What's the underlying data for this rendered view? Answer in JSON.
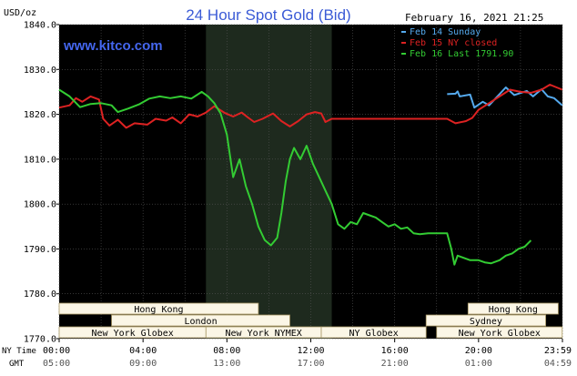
{
  "chart_data": {
    "type": "line",
    "title": "24 Hour Spot Gold (Bid)",
    "unit_label": "USD/oz",
    "watermark": "www.kitco.com",
    "timestamp": "February 16, 2021 21:25",
    "ylim": [
      1770,
      1840
    ],
    "y_ticks": [
      "1840.0",
      "1830.0",
      "1820.0",
      "1810.0",
      "1800.0",
      "1790.0",
      "1780.0",
      "1770.0"
    ],
    "xlim": [
      0,
      24
    ],
    "ny_label": "NY Time",
    "gmt_label": "GMT",
    "ny_ticks": [
      "00:00",
      "04:00",
      "08:00",
      "12:00",
      "16:00",
      "20:00",
      "23:59"
    ],
    "gmt_ticks": [
      "05:00",
      "09:00",
      "13:00",
      "17:00",
      "21:00",
      "01:00",
      "04:59"
    ],
    "grid": true,
    "legend_position": "top-right",
    "highlight_range": [
      7,
      13
    ],
    "sessions": [
      {
        "name": "Hong Kong",
        "start": 0,
        "end": 9.5,
        "row": 0
      },
      {
        "name": "London",
        "start": 2.5,
        "end": 11,
        "row": 1
      },
      {
        "name": "New York Globex",
        "start": 0,
        "end": 7,
        "row": 2
      },
      {
        "name": "New York NYMEX",
        "start": 7,
        "end": 12.5,
        "row": 2
      },
      {
        "name": "NY Globex",
        "start": 12.5,
        "end": 17.5,
        "row": 2
      },
      {
        "name": "Sydney",
        "start": 17.5,
        "end": 23.2,
        "row": 1
      },
      {
        "name": "Hong Kong",
        "start": 19.5,
        "end": 23.8,
        "row": 0
      },
      {
        "name": "New York Globex",
        "start": 18,
        "end": 23.99,
        "row": 2
      }
    ],
    "series": [
      {
        "name": "Feb 14 Sunday",
        "color": "#55aaee",
        "points": [
          [
            18.5,
            1824.5
          ],
          [
            18.9,
            1824.6
          ],
          [
            19.0,
            1825.1
          ],
          [
            19.1,
            1824.0
          ],
          [
            19.6,
            1824.4
          ],
          [
            19.8,
            1821.5
          ],
          [
            20.2,
            1822.8
          ],
          [
            20.5,
            1822.0
          ],
          [
            20.8,
            1823.5
          ],
          [
            21.3,
            1826.0
          ],
          [
            21.7,
            1824.3
          ],
          [
            22.3,
            1825.2
          ],
          [
            22.6,
            1824.0
          ],
          [
            23.0,
            1825.6
          ],
          [
            23.3,
            1824.0
          ],
          [
            23.6,
            1823.6
          ],
          [
            23.99,
            1822.0
          ]
        ]
      },
      {
        "name": "Feb 15 NY closed",
        "color": "#dd2222",
        "points": [
          [
            0,
            1821.5
          ],
          [
            0.5,
            1822.0
          ],
          [
            0.8,
            1823.6
          ],
          [
            1.1,
            1822.8
          ],
          [
            1.5,
            1824.0
          ],
          [
            1.9,
            1823.3
          ],
          [
            2.1,
            1819.0
          ],
          [
            2.4,
            1817.5
          ],
          [
            2.8,
            1818.8
          ],
          [
            3.2,
            1817.0
          ],
          [
            3.6,
            1818.0
          ],
          [
            4.2,
            1817.7
          ],
          [
            4.6,
            1819.0
          ],
          [
            5.1,
            1818.6
          ],
          [
            5.4,
            1819.3
          ],
          [
            5.8,
            1818.0
          ],
          [
            6.2,
            1820.0
          ],
          [
            6.6,
            1819.5
          ],
          [
            7.0,
            1820.4
          ],
          [
            7.4,
            1821.8
          ],
          [
            7.9,
            1820.3
          ],
          [
            8.3,
            1819.5
          ],
          [
            8.7,
            1820.4
          ],
          [
            9.0,
            1819.3
          ],
          [
            9.3,
            1818.3
          ],
          [
            9.7,
            1819.0
          ],
          [
            10.2,
            1820.2
          ],
          [
            10.6,
            1818.5
          ],
          [
            11.0,
            1817.3
          ],
          [
            11.4,
            1818.5
          ],
          [
            11.8,
            1820.0
          ],
          [
            12.2,
            1820.5
          ],
          [
            12.5,
            1820.2
          ],
          [
            12.7,
            1818.3
          ],
          [
            13.0,
            1819.0
          ],
          [
            13.5,
            1819.0
          ],
          [
            14.5,
            1819.0
          ],
          [
            15.5,
            1819.0
          ],
          [
            16.5,
            1819.0
          ],
          [
            17.5,
            1819.0
          ],
          [
            18.5,
            1819.0
          ],
          [
            18.9,
            1818.0
          ],
          [
            19.4,
            1818.5
          ],
          [
            19.7,
            1819.2
          ],
          [
            20.0,
            1821.0
          ],
          [
            20.5,
            1822.5
          ],
          [
            21.0,
            1824.0
          ],
          [
            21.5,
            1825.5
          ],
          [
            22.0,
            1825.0
          ],
          [
            22.5,
            1824.8
          ],
          [
            23.0,
            1825.5
          ],
          [
            23.4,
            1826.6
          ],
          [
            23.99,
            1825.5
          ]
        ]
      },
      {
        "name": "Feb 16 Last 1791.90",
        "color": "#33cc33",
        "points": [
          [
            0,
            1825.5
          ],
          [
            0.5,
            1824.0
          ],
          [
            1.0,
            1821.6
          ],
          [
            1.5,
            1822.3
          ],
          [
            2.0,
            1822.5
          ],
          [
            2.5,
            1822.0
          ],
          [
            2.8,
            1820.5
          ],
          [
            3.3,
            1821.3
          ],
          [
            3.8,
            1822.2
          ],
          [
            4.3,
            1823.5
          ],
          [
            4.8,
            1824.0
          ],
          [
            5.3,
            1823.6
          ],
          [
            5.8,
            1824.0
          ],
          [
            6.3,
            1823.5
          ],
          [
            6.8,
            1825.0
          ],
          [
            7.1,
            1824.0
          ],
          [
            7.4,
            1822.5
          ],
          [
            7.7,
            1820.2
          ],
          [
            8.0,
            1815.5
          ],
          [
            8.3,
            1806.0
          ],
          [
            8.6,
            1810.0
          ],
          [
            8.9,
            1804.0
          ],
          [
            9.2,
            1800.0
          ],
          [
            9.5,
            1795.0
          ],
          [
            9.8,
            1792.0
          ],
          [
            10.1,
            1790.8
          ],
          [
            10.4,
            1792.5
          ],
          [
            10.6,
            1798.0
          ],
          [
            10.8,
            1805.0
          ],
          [
            11.0,
            1810.0
          ],
          [
            11.2,
            1812.5
          ],
          [
            11.5,
            1810.0
          ],
          [
            11.8,
            1813.0
          ],
          [
            12.1,
            1809.0
          ],
          [
            12.4,
            1806.0
          ],
          [
            12.7,
            1803.0
          ],
          [
            13.0,
            1800.0
          ],
          [
            13.3,
            1795.5
          ],
          [
            13.6,
            1794.5
          ],
          [
            13.9,
            1796.0
          ],
          [
            14.2,
            1795.5
          ],
          [
            14.5,
            1798.0
          ],
          [
            14.8,
            1797.5
          ],
          [
            15.1,
            1797.0
          ],
          [
            15.4,
            1796.0
          ],
          [
            15.7,
            1795.0
          ],
          [
            16.0,
            1795.5
          ],
          [
            16.3,
            1794.5
          ],
          [
            16.6,
            1794.8
          ],
          [
            16.9,
            1793.5
          ],
          [
            17.2,
            1793.3
          ],
          [
            17.6,
            1793.5
          ],
          [
            18.0,
            1793.5
          ],
          [
            18.5,
            1793.5
          ],
          [
            18.7,
            1790.0
          ],
          [
            18.85,
            1786.5
          ],
          [
            19.0,
            1788.5
          ],
          [
            19.3,
            1788.0
          ],
          [
            19.6,
            1787.5
          ],
          [
            20.0,
            1787.5
          ],
          [
            20.3,
            1787.0
          ],
          [
            20.6,
            1786.8
          ],
          [
            21.0,
            1787.5
          ],
          [
            21.3,
            1788.5
          ],
          [
            21.6,
            1789.0
          ],
          [
            21.9,
            1790.0
          ],
          [
            22.2,
            1790.5
          ],
          [
            22.5,
            1791.9
          ]
        ]
      }
    ]
  }
}
